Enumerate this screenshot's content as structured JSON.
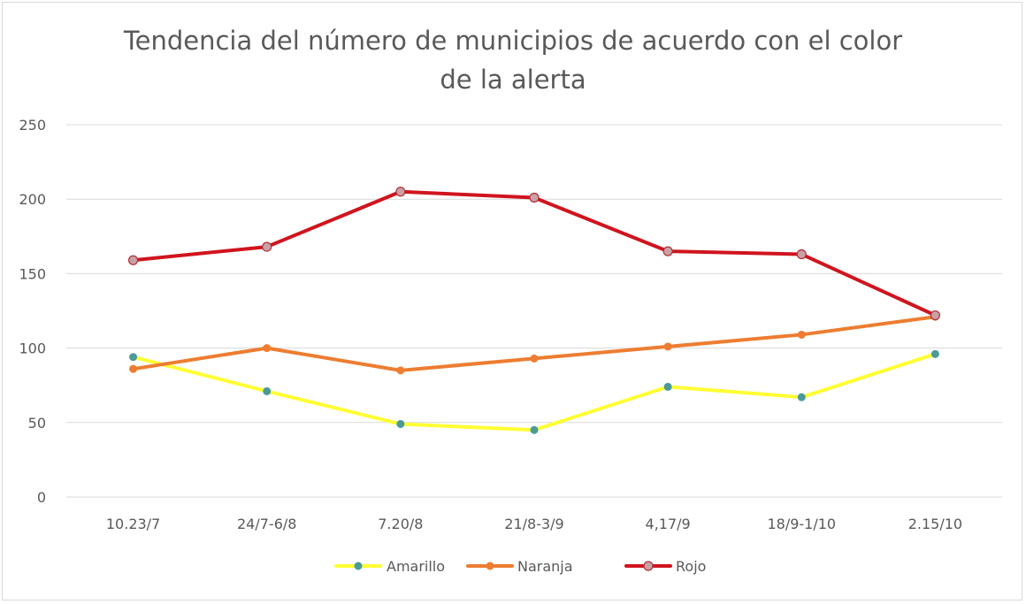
{
  "chart_data": {
    "type": "line",
    "title_lines": [
      "Tendencia del número de municipios de acuerdo con el color",
      "de la alerta"
    ],
    "categories": [
      "10.23/7",
      "24/7-6/8",
      "7.20/8",
      "21/8-3/9",
      "4,17/9",
      "18/9-1/10",
      "2.15/10"
    ],
    "ylim": [
      0,
      250
    ],
    "yticks": [
      0,
      50,
      100,
      150,
      200,
      250
    ],
    "grid": true,
    "legend_position": "bottom",
    "series": [
      {
        "name": "Amarillo",
        "color": "#ffff33",
        "marker_color": "#4a9a9a",
        "values": [
          94,
          71,
          49,
          45,
          74,
          67,
          96
        ]
      },
      {
        "name": "Naranja",
        "color": "#ed7d31",
        "marker_color": "#ed7d31",
        "values": [
          86,
          100,
          85,
          93,
          101,
          109,
          121
        ]
      },
      {
        "name": "Rojo",
        "color": "#d0141e",
        "marker_color": "#c9a0a6",
        "values": [
          159,
          168,
          205,
          201,
          165,
          163,
          122
        ]
      }
    ]
  }
}
